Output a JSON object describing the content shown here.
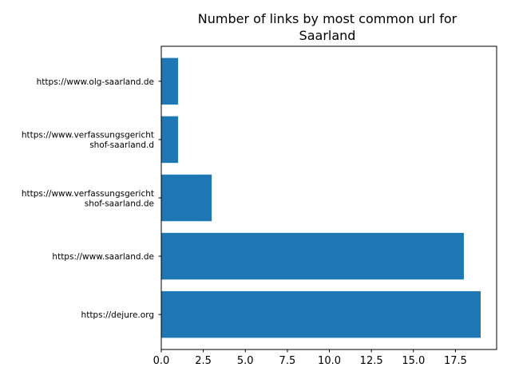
{
  "chart_data": {
    "type": "bar",
    "orientation": "horizontal",
    "title_lines": [
      "Number of links by most common url for",
      "Saarland"
    ],
    "categories": [
      {
        "label_lines": [
          "https://dejure.org"
        ],
        "value": 19
      },
      {
        "label_lines": [
          "https://www.saarland.de"
        ],
        "value": 18
      },
      {
        "label_lines": [
          "https://www.verfassungsgericht",
          "shof-saarland.de"
        ],
        "value": 3
      },
      {
        "label_lines": [
          "https://www.verfassungsgericht",
          "shof-saarland.d"
        ],
        "value": 1
      },
      {
        "label_lines": [
          "https://www.olg-saarland.de"
        ],
        "value": 1
      }
    ],
    "xticks": [
      "0.0",
      "2.5",
      "5.0",
      "7.5",
      "10.0",
      "12.5",
      "15.0",
      "17.5"
    ],
    "xlim": [
      0,
      19.95
    ],
    "bar_color": "#1f77b4",
    "grid": false
  }
}
